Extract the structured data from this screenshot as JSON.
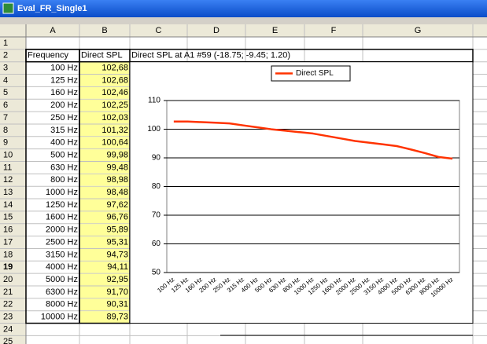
{
  "window": {
    "title": "Eval_FR_Single1"
  },
  "sheet": {
    "columns": [
      "A",
      "B",
      "C",
      "D",
      "E",
      "F",
      "G"
    ],
    "rows": [
      1,
      2,
      3,
      4,
      5,
      6,
      7,
      8,
      9,
      10,
      11,
      12,
      13,
      14,
      15,
      16,
      17,
      18,
      19,
      20,
      21,
      22,
      23,
      24,
      25
    ],
    "row2": [
      "Frequency",
      "Direct SPL",
      "Direct SPL at A1 #59  (-18.75; -9.45; 1.20)"
    ]
  },
  "chart_data": {
    "type": "line",
    "categories": [
      "100 Hz",
      "125 Hz",
      "160 Hz",
      "200 Hz",
      "250 Hz",
      "315 Hz",
      "400 Hz",
      "500 Hz",
      "630 Hz",
      "800 Hz",
      "1000 Hz",
      "1250 Hz",
      "1600 Hz",
      "2000 Hz",
      "2500 Hz",
      "3150 Hz",
      "4000 Hz",
      "5000 Hz",
      "6300 Hz",
      "8000 Hz",
      "10000 Hz"
    ],
    "series": [
      {
        "name": "Direct SPL",
        "color": "#ff3300",
        "values": [
          102.68,
          102.68,
          102.46,
          102.25,
          102.03,
          101.32,
          100.64,
          99.98,
          99.48,
          98.98,
          98.48,
          97.62,
          96.76,
          95.89,
          95.31,
          94.73,
          94.11,
          92.95,
          91.7,
          90.31,
          89.73
        ],
        "value_labels": [
          "102,68",
          "102,68",
          "102,46",
          "102,25",
          "102,03",
          "101,32",
          "100,64",
          "99,98",
          "99,48",
          "98,98",
          "98,48",
          "97,62",
          "96,76",
          "95,89",
          "95,31",
          "94,73",
          "94,11",
          "92,95",
          "91,70",
          "90,31",
          "89,73"
        ]
      }
    ],
    "ylim": [
      50,
      110
    ],
    "yticks": [
      50,
      60,
      70,
      80,
      90,
      100,
      110
    ],
    "grid": true,
    "legend": "top"
  }
}
